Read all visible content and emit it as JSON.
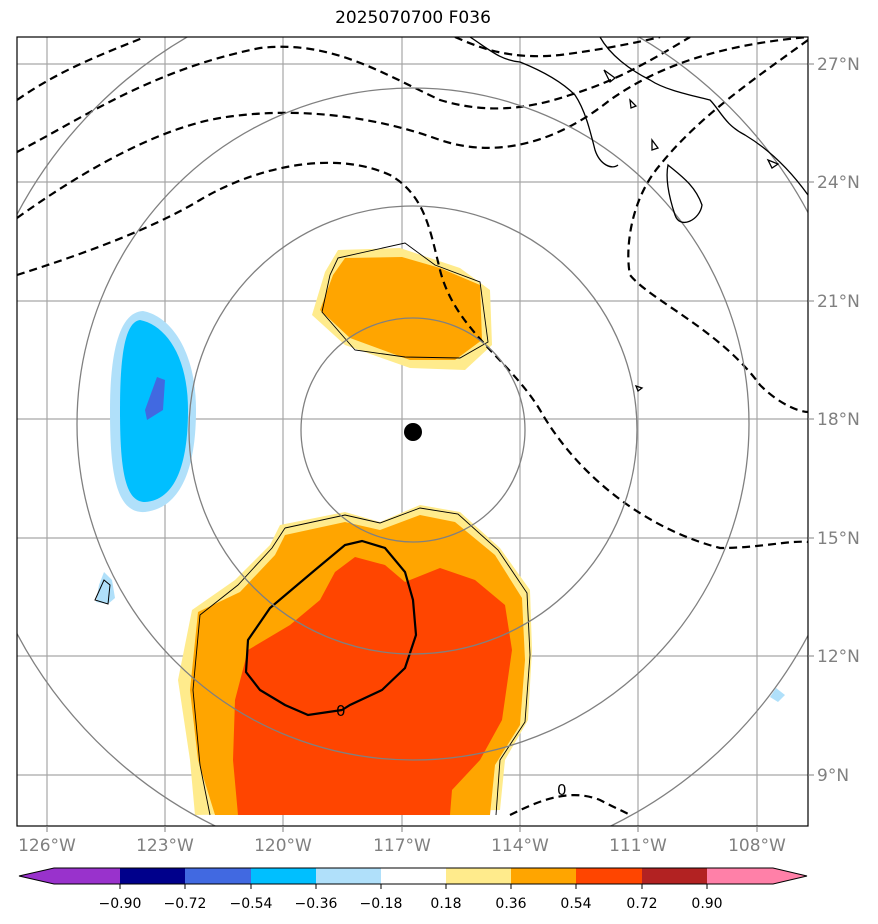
{
  "title": "2025070700 F036",
  "colors": {
    "neg_090": "#9932cc",
    "neg_072": "#00008b",
    "neg_054": "#4169e1",
    "neg_036": "#00bfff",
    "neg_018": "#b0e0fa",
    "zero": "#ffffff",
    "pos_018": "#ffeb8c",
    "pos_036": "#ffa500",
    "pos_054": "#ff4500",
    "pos_072": "#b22222",
    "pos_090": "#ff80a8",
    "grid": "#a0a0a0",
    "range_rings": "#808080",
    "center_marker": "#000000"
  },
  "longitude_labels": [
    "126°W",
    "123°W",
    "120°W",
    "117°W",
    "114°W",
    "111°W",
    "108°W"
  ],
  "latitude_labels": [
    "27°N",
    "24°N",
    "21°N",
    "18°N",
    "15°N",
    "12°N",
    "9°N"
  ],
  "colorbar": {
    "labels": [
      "−0.90",
      "−0.72",
      "−0.54",
      "−0.36",
      "−0.18",
      "0.18",
      "0.36",
      "0.54",
      "0.72",
      "0.90"
    ]
  },
  "contour_labels": [
    "0",
    "0"
  ]
}
